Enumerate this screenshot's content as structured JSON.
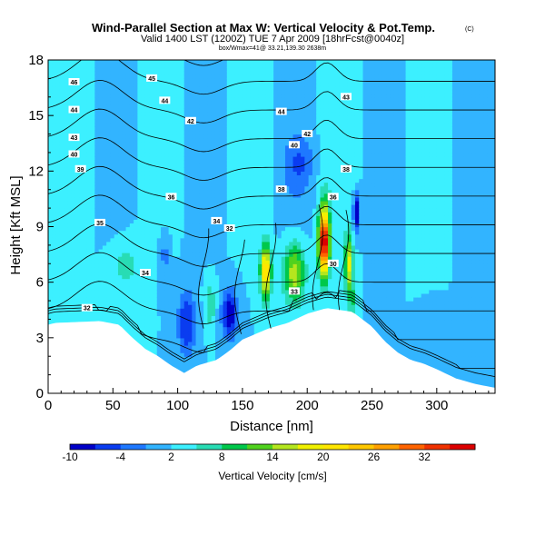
{
  "chart_data": {
    "type": "heatmap",
    "title": "Wind-Parallel Section at Max W: Vertical Velocity & Pot.Temp.",
    "title_mark": "(C)",
    "subtitle": "Valid 1400 LST (1200Z) TUE 7 Apr 2009 [18hrFcst@0040z]",
    "subtitle2": "box/Wmax=41@ 33.21,139.30 2638m",
    "xlabel": "Distance [nm]",
    "ylabel": "Height [Kft MSL]",
    "xlim": [
      0,
      345
    ],
    "ylim": [
      0,
      18
    ],
    "x_ticks": [
      "0",
      "50",
      "100",
      "150",
      "200",
      "250",
      "300"
    ],
    "y_ticks": [
      "0",
      "3",
      "6",
      "9",
      "12",
      "15",
      "18"
    ],
    "colorbar": {
      "label": "Vertical Velocity [cm/s]",
      "tick_labels": [
        "-10",
        "-4",
        "2",
        "8",
        "14",
        "20",
        "26",
        "32"
      ],
      "range": [
        -10,
        38
      ]
    },
    "contour_labels": [
      "46",
      "45",
      "44",
      "44",
      "44",
      "43",
      "43",
      "42",
      "42",
      "40",
      "40",
      "39",
      "38",
      "38",
      "36",
      "36",
      "35",
      "34",
      "34",
      "33",
      "32",
      "32",
      "30"
    ],
    "terrain": [
      [
        0,
        3.7
      ],
      [
        5,
        3.8
      ],
      [
        40,
        3.9
      ],
      [
        55,
        3.7
      ],
      [
        65,
        3.0
      ],
      [
        75,
        2.4
      ],
      [
        85,
        2.0
      ],
      [
        95,
        1.5
      ],
      [
        105,
        1.1
      ],
      [
        115,
        1.5
      ],
      [
        130,
        1.8
      ],
      [
        140,
        2.3
      ],
      [
        150,
        2.9
      ],
      [
        160,
        3.2
      ],
      [
        170,
        3.5
      ],
      [
        185,
        3.8
      ],
      [
        200,
        4.3
      ],
      [
        215,
        4.6
      ],
      [
        235,
        4.4
      ],
      [
        250,
        3.6
      ],
      [
        260,
        2.8
      ],
      [
        270,
        2.2
      ],
      [
        280,
        1.8
      ],
      [
        290,
        1.6
      ],
      [
        300,
        1.3
      ],
      [
        315,
        0.8
      ],
      [
        330,
        0.5
      ],
      [
        345,
        0.3
      ]
    ],
    "updrafts": [
      {
        "x": 213,
        "z": 8.2,
        "w": 38,
        "sx": 4,
        "sz": 1.8
      },
      {
        "x": 168,
        "z": 6.6,
        "w": 22,
        "sx": 4,
        "sz": 1.4
      },
      {
        "x": 190,
        "z": 6.5,
        "w": 14,
        "sx": 8,
        "sz": 1.6
      },
      {
        "x": 232,
        "z": 7.0,
        "w": 16,
        "sx": 3,
        "sz": 1.6
      },
      {
        "x": 125,
        "z": 4.8,
        "w": 6,
        "sx": 4,
        "sz": 1.2
      },
      {
        "x": 60,
        "z": 7.0,
        "w": 4,
        "sx": 12,
        "sz": 1.5
      },
      {
        "x": 235,
        "z": 5.0,
        "w": 6,
        "sx": 3,
        "sz": 1.0
      }
    ],
    "downdrafts": [
      {
        "x": 140,
        "z": 4.3,
        "w": -12,
        "sx": 6,
        "sz": 1.3
      },
      {
        "x": 107,
        "z": 3.8,
        "w": -9,
        "sx": 7,
        "sz": 1.8
      },
      {
        "x": 238,
        "z": 9.8,
        "w": -14,
        "sx": 2.5,
        "sz": 1.0
      },
      {
        "x": 90,
        "z": 7.5,
        "w": -4,
        "sx": 4,
        "sz": 1.4
      },
      {
        "x": 195,
        "z": 12.5,
        "w": -4,
        "sx": 10,
        "sz": 1.4
      },
      {
        "x": 300,
        "z": 3.0,
        "w": -3,
        "sx": 10,
        "sz": 1.2
      }
    ],
    "background_w": 2
  }
}
